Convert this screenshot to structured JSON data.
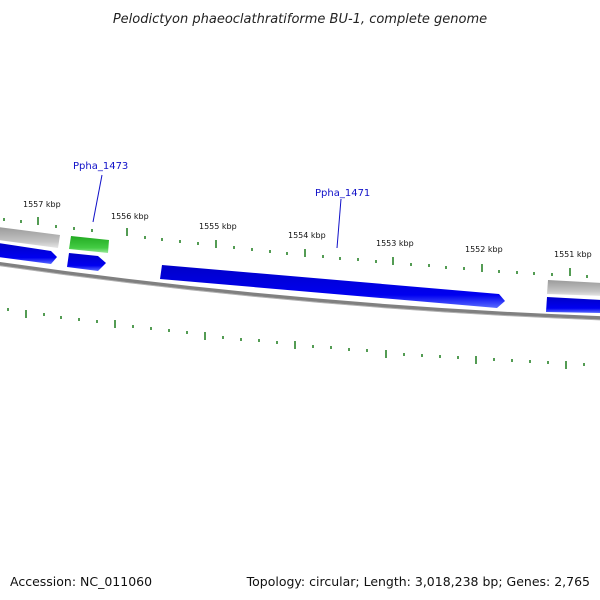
{
  "title": "Pelodictyon phaeoclathratiforme BU-1, complete genome",
  "accession_text": "Accession: NC_011060",
  "summary_text": "Topology: circular; Length: 3,018,238 bp; Genes: 2,765",
  "scale_labels": [
    "1557 kbp",
    "1556 kbp",
    "1555 kbp",
    "1554 kbp",
    "1553 kbp",
    "1552 kbp",
    "1551 kbp"
  ],
  "gene_labels": [
    "Ppha_1473",
    "Ppha_1471"
  ],
  "colors": {
    "forward_cds": "#0000ee",
    "highlight_cds": "#33bb33",
    "other_feature": "#b8b8b8",
    "backbone": "#808080",
    "ticks": "#1a7a1a",
    "gene_label": "#1010c8"
  }
}
